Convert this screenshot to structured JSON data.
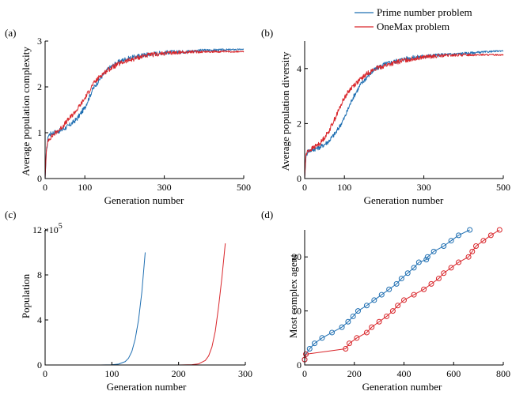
{
  "legend": {
    "position": "top-right",
    "entries": [
      {
        "label": "Prime number problem",
        "color": "#1f6fb2"
      },
      {
        "label": "OneMax problem",
        "color": "#d9262b"
      }
    ]
  },
  "chart_data": [
    {
      "panel": "(a)",
      "type": "line",
      "xlabel": "Generation number",
      "ylabel": "Average population complexity",
      "xlim": [
        0,
        500
      ],
      "ylim": [
        0,
        3
      ],
      "xticks": [
        0,
        100,
        300,
        500
      ],
      "yticks": [
        0,
        1,
        2,
        3
      ],
      "grid": false,
      "series": [
        {
          "name": "Prime number problem",
          "color": "#1f6fb2",
          "noisy": true,
          "x": [
            0,
            3,
            8,
            20,
            40,
            60,
            80,
            100,
            120,
            140,
            160,
            180,
            200,
            250,
            300,
            350,
            400,
            450,
            500
          ],
          "y": [
            0,
            0.55,
            0.95,
            1.0,
            1.05,
            1.15,
            1.3,
            1.55,
            1.95,
            2.2,
            2.4,
            2.52,
            2.6,
            2.7,
            2.75,
            2.77,
            2.8,
            2.81,
            2.82
          ]
        },
        {
          "name": "OneMax problem",
          "color": "#d9262b",
          "noisy": true,
          "x": [
            0,
            3,
            8,
            20,
            40,
            60,
            80,
            100,
            120,
            140,
            160,
            180,
            200,
            250,
            300,
            350,
            400,
            450,
            500
          ],
          "y": [
            0,
            0.6,
            0.85,
            0.95,
            1.1,
            1.3,
            1.5,
            1.75,
            2.05,
            2.25,
            2.38,
            2.48,
            2.55,
            2.68,
            2.73,
            2.76,
            2.77,
            2.77,
            2.77
          ]
        }
      ]
    },
    {
      "panel": "(b)",
      "type": "line",
      "xlabel": "Generation number",
      "ylabel": "Average population diversity",
      "xlim": [
        0,
        500
      ],
      "ylim": [
        0,
        5
      ],
      "xticks": [
        0,
        100,
        300,
        500
      ],
      "yticks": [
        0,
        2,
        4
      ],
      "grid": false,
      "series": [
        {
          "name": "Prime number problem",
          "color": "#1f6fb2",
          "noisy": true,
          "x": [
            0,
            3,
            8,
            20,
            40,
            60,
            80,
            100,
            120,
            140,
            160,
            180,
            200,
            250,
            300,
            350,
            400,
            450,
            500
          ],
          "y": [
            0,
            0.8,
            1.0,
            1.05,
            1.15,
            1.35,
            1.7,
            2.2,
            2.9,
            3.4,
            3.75,
            4.0,
            4.15,
            4.35,
            4.45,
            4.5,
            4.55,
            4.6,
            4.65
          ]
        },
        {
          "name": "OneMax problem",
          "color": "#d9262b",
          "noisy": true,
          "x": [
            0,
            3,
            8,
            20,
            40,
            60,
            80,
            100,
            120,
            140,
            160,
            180,
            200,
            250,
            300,
            350,
            400,
            450,
            500
          ],
          "y": [
            0,
            0.85,
            1.0,
            1.1,
            1.3,
            1.7,
            2.3,
            2.95,
            3.35,
            3.6,
            3.85,
            4.0,
            4.1,
            4.3,
            4.42,
            4.47,
            4.5,
            4.5,
            4.5
          ]
        }
      ]
    },
    {
      "panel": "(c)",
      "type": "line",
      "xlabel": "Generation number",
      "ylabel": "Population",
      "y_multiplier": "×10",
      "y_multiplier_exp": "5",
      "xlim": [
        0,
        300
      ],
      "ylim": [
        0,
        12
      ],
      "xticks": [
        0,
        100,
        200,
        300
      ],
      "yticks": [
        0,
        4,
        8,
        12
      ],
      "grid": false,
      "series": [
        {
          "name": "Prime number problem",
          "color": "#1f6fb2",
          "x": [
            0,
            80,
            100,
            110,
            120,
            125,
            130,
            135,
            140,
            145,
            150
          ],
          "y": [
            0,
            0,
            0.02,
            0.08,
            0.3,
            0.6,
            1.2,
            2.3,
            4.0,
            6.5,
            10.0
          ]
        },
        {
          "name": "OneMax problem",
          "color": "#d9262b",
          "x": [
            0,
            200,
            220,
            230,
            240,
            245,
            250,
            255,
            260,
            265,
            270
          ],
          "y": [
            0,
            0,
            0.03,
            0.1,
            0.4,
            0.8,
            1.6,
            3.0,
            5.2,
            7.8,
            10.8
          ]
        }
      ]
    },
    {
      "panel": "(d)",
      "type": "line",
      "xlabel": "Generation number",
      "ylabel": "Most complex agent",
      "xlim": [
        0,
        800
      ],
      "ylim": [
        0,
        25
      ],
      "xticks": [
        0,
        200,
        400,
        600,
        800
      ],
      "yticks": [
        0,
        10,
        20
      ],
      "grid": false,
      "markers": "circle",
      "series": [
        {
          "name": "Prime number problem",
          "color": "#1f6fb2",
          "x": [
            0,
            5,
            20,
            40,
            70,
            110,
            150,
            175,
            195,
            215,
            250,
            280,
            310,
            340,
            370,
            390,
            415,
            440,
            460,
            490,
            495,
            520,
            560,
            590,
            620,
            665
          ],
          "y": [
            1,
            2,
            3,
            4,
            5,
            6,
            7,
            8,
            9,
            10,
            11,
            12,
            13,
            14,
            15,
            16,
            17,
            18,
            19,
            19.5,
            20,
            21,
            22,
            23,
            24,
            25
          ]
        },
        {
          "name": "OneMax problem",
          "color": "#d9262b",
          "x": [
            0,
            5,
            165,
            180,
            210,
            250,
            270,
            300,
            330,
            355,
            375,
            400,
            440,
            480,
            510,
            540,
            560,
            590,
            620,
            660,
            675,
            690,
            720,
            750,
            785
          ],
          "y": [
            1,
            2,
            3,
            4,
            5,
            6,
            7,
            8,
            9,
            10,
            11,
            12,
            13,
            14,
            15,
            16,
            17,
            18,
            19,
            20,
            21,
            22,
            23,
            24,
            25
          ]
        }
      ]
    }
  ]
}
